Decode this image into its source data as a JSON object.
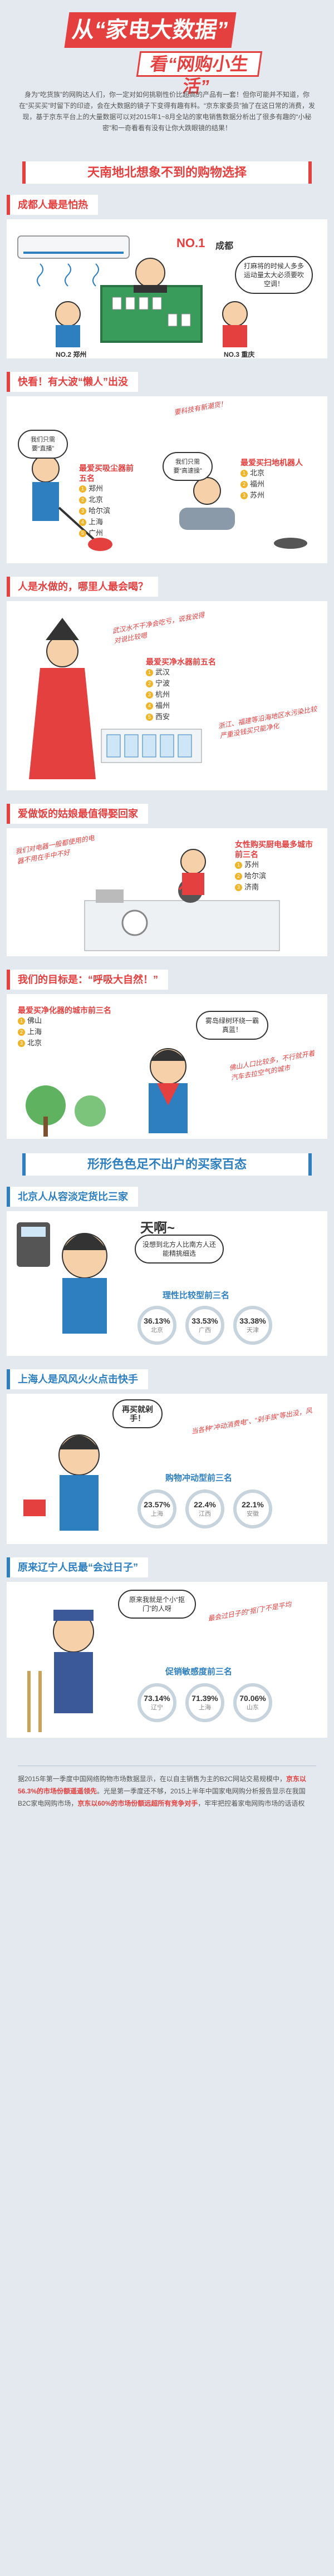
{
  "header": {
    "title1": "从“家电大数据”",
    "title2": "看“网购小生活”",
    "intro": "身为“吃货族”的网购达人们，你一定对如何挑剔性价比超高的产品有一套！但你可能并不知道，你在“买买买”时留下的印迹，会在大数据的镜子下变得有趣有料。“京东家委员”抽了在这日常的消费，发现，基于京东平台上的大量数据可以对2015年1~8月全站的家电销售数据分析出了很多有趣的“小秘密”和一奇看看有没有让你大跌眼镜的结果！"
  },
  "section1": {
    "banner": "天南地北想象不到的购物选择",
    "chengdu": {
      "title": "成都人最是怕热",
      "no1": "NO.1",
      "no1_city": "成都",
      "bubble": "打麻将的时候人多多运动量太大必须要吹空调！",
      "no2": "NO.2",
      "no2_city": "郑州",
      "no3": "NO.3",
      "no3_city": "重庆"
    },
    "lazy": {
      "title": "快看！有大波“懒人”出没",
      "hand": "要科技有新潮货！",
      "left_bubble": "我们只需要“直播”",
      "left_heading": "最爱买吸尘器前五名",
      "left_items": [
        "郑州",
        "北京",
        "哈尔滨",
        "上海",
        "广州"
      ],
      "right_bubble": "我们只需要“高速操”",
      "right_heading": "最爱买扫地机器人",
      "right_items": [
        "北京",
        "福州",
        "苏州"
      ]
    },
    "water": {
      "title": "人是水做的，哪里人最会喝？",
      "hand1": "武汉水不干净会吃亏，说我说得对说比较嗯",
      "heading": "最爱买净水器前五名",
      "items": [
        "武汉",
        "宁波",
        "杭州",
        "福州",
        "西安"
      ],
      "hand2": "浙江、福建等沿海地区水污染比较严重没钱买只能净化"
    },
    "cook": {
      "title": "爱做饭的姑娘最值得娶回家",
      "hand": "我们对电器一般都使用的电器不用在手中不好",
      "heading": "女性购买厨电最多城市前三名",
      "items": [
        "苏州",
        "哈尔滨",
        "济南"
      ]
    },
    "nature": {
      "title": "我们的目标是：“呼吸大自然！”",
      "heading": "最爱买净化器的城市前三名",
      "items": [
        "佛山",
        "上海",
        "北京"
      ],
      "bubble": "雾岛绿树环绕一霸真蓝！",
      "hand": "佛山人口比较多，不行就开着汽车去拉空气的城市"
    }
  },
  "section2": {
    "banner": "形形色色足不出户的买家百态",
    "beijing": {
      "title": "北京人从容淡定货比三家",
      "bubble_title": "天啊~",
      "bubble": "没想到北方人比南方人还能精挑细选",
      "chart_title": "理性比较型前三名",
      "pcts": [
        {
          "value": "36.13%",
          "label": "北京"
        },
        {
          "value": "33.53%",
          "label": "广西"
        },
        {
          "value": "33.38%",
          "label": "天津"
        }
      ]
    },
    "shanghai": {
      "title": "上海人是风风火火点击快手",
      "bubble": "再买就剁手！",
      "hand": "当各种“冲动消费电”、“剁手族”等出没，风",
      "chart_title": "购物冲动型前三名",
      "pcts": [
        {
          "value": "23.57%",
          "label": "上海"
        },
        {
          "value": "22.4%",
          "label": "江西"
        },
        {
          "value": "22.1%",
          "label": "安徽"
        }
      ]
    },
    "liaoning": {
      "title": "原来辽宁人民最“会过日子”",
      "bubble": "原来我就是个小“抠门”的人呀",
      "hand": "最会过日子的“抠门”不是平均",
      "chart_title": "促销敏感度前三名",
      "pcts": [
        {
          "value": "73.14%",
          "label": "辽宁"
        },
        {
          "value": "71.39%",
          "label": "上海"
        },
        {
          "value": "70.06%",
          "label": "山东"
        }
      ]
    }
  },
  "footer": {
    "p1a": "据2015年第一季度中国网络购物市场数据显示，在以自主销售为主的B2C网站交易规模中，",
    "p1b": "京东以56.3%的市场份额遥遥领先",
    "p1c": "。光是第一季度还不够，2015上半年中国家电网购分析报告显示在我国B2C家电网购市场，",
    "p1d": "京东以60%的市场份额远超所有竞争对手",
    "p1e": "，牢牢把控着家电网购市场的话语权"
  },
  "colors": {
    "accent": "#e4403f",
    "blue": "#2d7fc0",
    "bg": "#e3e9ee"
  }
}
